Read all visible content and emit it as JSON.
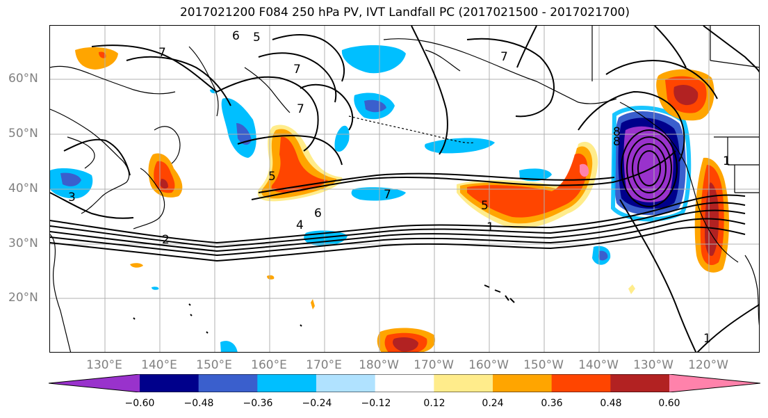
{
  "title": "2017021200 F084 250 hPa PV, IVT Landfall PC (2017021500 - 2017021700)",
  "lat_labels": [
    "60°N",
    "50°N",
    "40°N",
    "30°N",
    "20°N"
  ],
  "lon_labels": [
    "130°E",
    "140°E",
    "150°E",
    "160°E",
    "170°E",
    "180°W",
    "170°W",
    "160°W",
    "150°W",
    "140°W",
    "130°W",
    "120°W"
  ],
  "contour_labels": [
    "6",
    "5",
    "7",
    "7",
    "7",
    "7",
    "7",
    "8",
    "5",
    "5",
    "6",
    "4",
    "2",
    "1",
    "8",
    "3",
    "1",
    "1"
  ],
  "colorbar": {
    "ticks": [
      "−0.60",
      "−0.48",
      "−0.36",
      "−0.24",
      "−0.12",
      "0.12",
      "0.24",
      "0.36",
      "0.48",
      "0.60"
    ],
    "colors": [
      "#9932CC",
      "#00008B",
      "#3A5FCD",
      "#00BFFF",
      "#B0E2FF",
      "#FFFFFF",
      "#FFEC8B",
      "#FFA500",
      "#FF4500",
      "#B22222",
      "#FF82AB"
    ]
  }
}
